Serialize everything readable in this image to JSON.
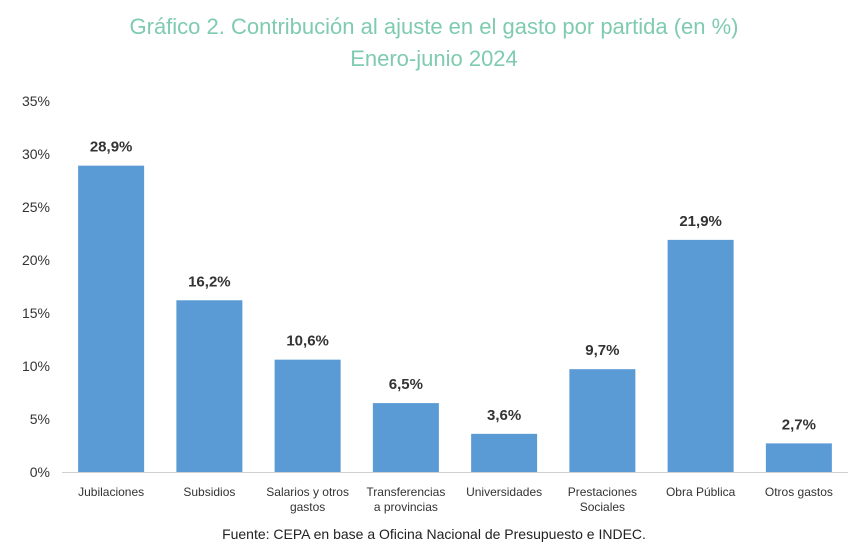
{
  "chart_data": {
    "type": "bar",
    "title": "Gráfico 2. Contribución al ajuste en el gasto por partida (en %)",
    "subtitle": "Enero-junio 2024",
    "categories": [
      [
        "Jubilaciones"
      ],
      [
        "Subsidios"
      ],
      [
        "Salarios y otros",
        "gastos"
      ],
      [
        "Transferencias",
        "a provincias"
      ],
      [
        "Universidades"
      ],
      [
        "Prestaciones",
        "Sociales"
      ],
      [
        "Obra Pública"
      ],
      [
        "Otros gastos"
      ]
    ],
    "values": [
      28.9,
      16.2,
      10.6,
      6.5,
      3.6,
      9.7,
      21.9,
      2.7
    ],
    "data_labels": [
      "28,9%",
      "16,2%",
      "10,6%",
      "6,5%",
      "3,6%",
      "9,7%",
      "21,9%",
      "2,7%"
    ],
    "y_ticks": [
      0,
      5,
      10,
      15,
      20,
      25,
      30,
      35
    ],
    "y_tick_labels": [
      "0%",
      "5%",
      "10%",
      "15%",
      "20%",
      "25%",
      "30%",
      "35%"
    ],
    "ylim": [
      0,
      35
    ],
    "grid": false,
    "bar_color": "#5b9bd5",
    "title_color": "#7fcbb0"
  },
  "source": "Fuente: CEPA en base a Oficina Nacional de Presupuesto e INDEC."
}
